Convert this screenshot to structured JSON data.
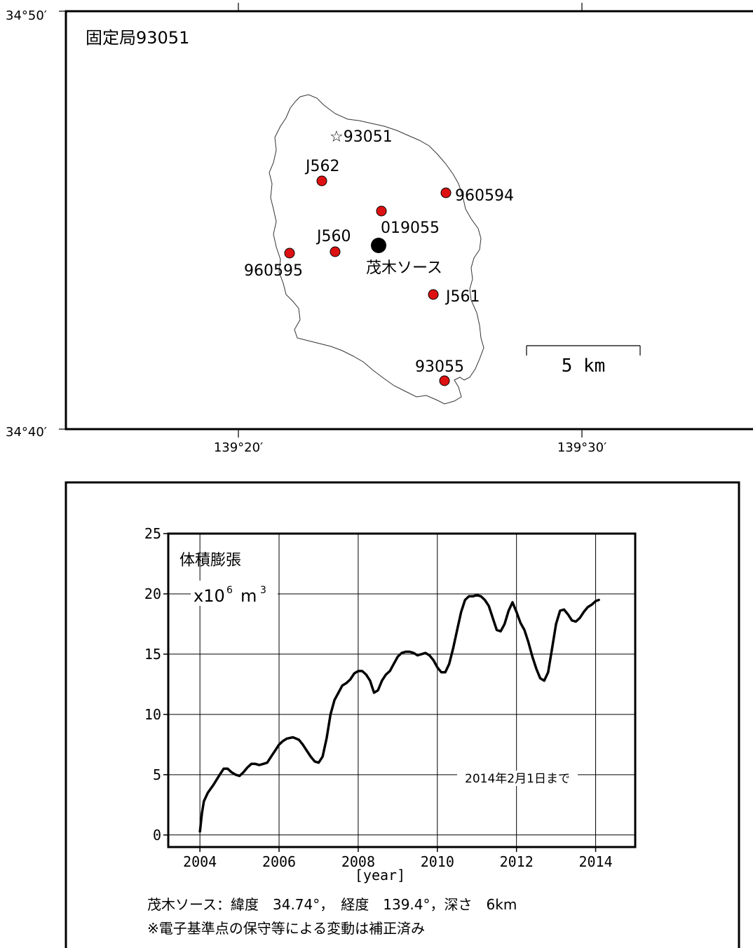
{
  "map": {
    "title": "固定局93051",
    "lat_top_label": "34°50′",
    "lat_bottom_label": "34°40′",
    "lon_left_label": "139°20′",
    "lon_right_label": "139°30′",
    "scale_label": "5 km",
    "reference_station": {
      "label": "☆93051"
    },
    "source": {
      "label": "茂木ソース"
    },
    "stations": [
      {
        "id": "J562",
        "label": "J562"
      },
      {
        "id": "960594",
        "label": "960594"
      },
      {
        "id": "019055",
        "label": "019055"
      },
      {
        "id": "J560",
        "label": "J560"
      },
      {
        "id": "960595",
        "label": "960595"
      },
      {
        "id": "J561",
        "label": "J561"
      },
      {
        "id": "93055",
        "label": "93055"
      }
    ],
    "colors": {
      "station": "#dd1111",
      "source": "#000000"
    }
  },
  "chart_data": {
    "type": "line",
    "title": "体積膨張",
    "unit_base": "x10",
    "unit_exp1": "6",
    "unit_m": "m",
    "unit_exp2": "3",
    "xlabel": "[year]",
    "xlim": [
      2003.2,
      2015.0
    ],
    "ylim": [
      -1,
      25
    ],
    "xticks": [
      2004,
      2006,
      2008,
      2010,
      2012,
      2014
    ],
    "yticks": [
      0,
      5,
      10,
      15,
      20,
      25
    ],
    "grid": true,
    "annotation": "2014年2月1日まで",
    "series": [
      {
        "x": [
          2004.0,
          2004.05,
          2004.1,
          2004.2,
          2004.35,
          2004.5,
          2004.6,
          2004.7,
          2004.8,
          2004.9,
          2005.0,
          2005.1,
          2005.2,
          2005.3,
          2005.4,
          2005.5,
          2005.6,
          2005.7,
          2005.8,
          2005.9,
          2006.0,
          2006.1,
          2006.2,
          2006.35,
          2006.5,
          2006.6,
          2006.7,
          2006.8,
          2006.9,
          2007.0,
          2007.1,
          2007.2,
          2007.3,
          2007.4,
          2007.5,
          2007.6,
          2007.7,
          2007.8,
          2007.9,
          2008.0,
          2008.1,
          2008.2,
          2008.3,
          2008.4,
          2008.5,
          2008.6,
          2008.7,
          2008.8,
          2008.9,
          2009.0,
          2009.1,
          2009.2,
          2009.3,
          2009.4,
          2009.5,
          2009.6,
          2009.7,
          2009.8,
          2009.9,
          2010.0,
          2010.1,
          2010.2,
          2010.3,
          2010.4,
          2010.5,
          2010.6,
          2010.7,
          2010.8,
          2010.9,
          2011.0,
          2011.1,
          2011.2,
          2011.3,
          2011.4,
          2011.5,
          2011.6,
          2011.7,
          2011.8,
          2011.9,
          2012.0,
          2012.1,
          2012.2,
          2012.3,
          2012.4,
          2012.5,
          2012.6,
          2012.7,
          2012.8,
          2012.9,
          2013.0,
          2013.1,
          2013.2,
          2013.3,
          2013.4,
          2013.5,
          2013.6,
          2013.7,
          2013.8,
          2013.9,
          2014.0,
          2014.08
        ],
        "y": [
          0.3,
          1.8,
          2.8,
          3.5,
          4.2,
          5.0,
          5.5,
          5.5,
          5.2,
          5.0,
          4.9,
          5.2,
          5.6,
          5.9,
          5.9,
          5.8,
          5.9,
          6.0,
          6.5,
          7.0,
          7.5,
          7.8,
          8.0,
          8.1,
          7.9,
          7.5,
          7.0,
          6.5,
          6.1,
          6.0,
          6.5,
          8.0,
          10.0,
          11.2,
          11.8,
          12.4,
          12.6,
          12.9,
          13.4,
          13.6,
          13.6,
          13.3,
          12.8,
          11.8,
          12.0,
          12.8,
          13.3,
          13.6,
          14.2,
          14.8,
          15.1,
          15.2,
          15.2,
          15.1,
          14.9,
          15.0,
          15.1,
          14.9,
          14.5,
          13.9,
          13.5,
          13.5,
          14.2,
          15.5,
          17.0,
          18.5,
          19.5,
          19.8,
          19.8,
          19.9,
          19.8,
          19.5,
          19.0,
          18.0,
          17.0,
          16.9,
          17.5,
          18.6,
          19.3,
          18.5,
          17.6,
          17.0,
          16.0,
          14.8,
          13.8,
          13.0,
          12.8,
          13.5,
          15.5,
          17.5,
          18.6,
          18.7,
          18.3,
          17.8,
          17.7,
          18.0,
          18.5,
          18.9,
          19.1,
          19.4,
          19.5
        ]
      }
    ]
  },
  "caption": {
    "line1": "茂木ソース：緯度　34.74°，　経度　139.4°，深さ　6km",
    "line2": "※電子基準点の保守等による変動は補正済み"
  }
}
